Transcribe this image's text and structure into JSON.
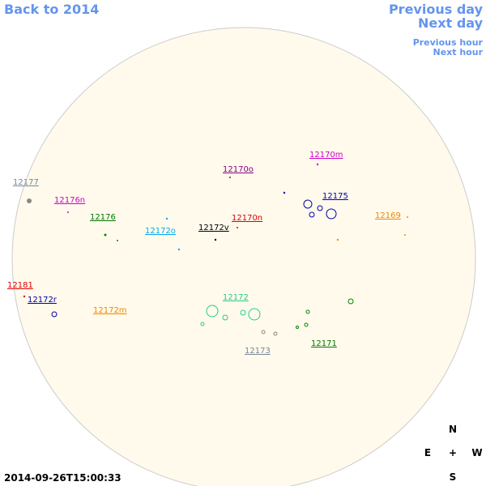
{
  "nav": {
    "back": "Back to 2014",
    "previous_day": "Previous day",
    "next_day": "Next day",
    "previous_hour": "Previous hour",
    "next_hour": "Next hour"
  },
  "regions": [
    "12177",
    "12176n",
    "12176",
    "12172o",
    "12172v",
    "12170n",
    "12170o",
    "12170m",
    "12175",
    "12169",
    "12181",
    "12172r",
    "12172m",
    "12172",
    "12173",
    "12171"
  ],
  "compass": {
    "north": "N",
    "east": "E",
    "center": "+",
    "west": "W",
    "south": "S"
  },
  "timestamp": "2014-09-26T15:00:33"
}
